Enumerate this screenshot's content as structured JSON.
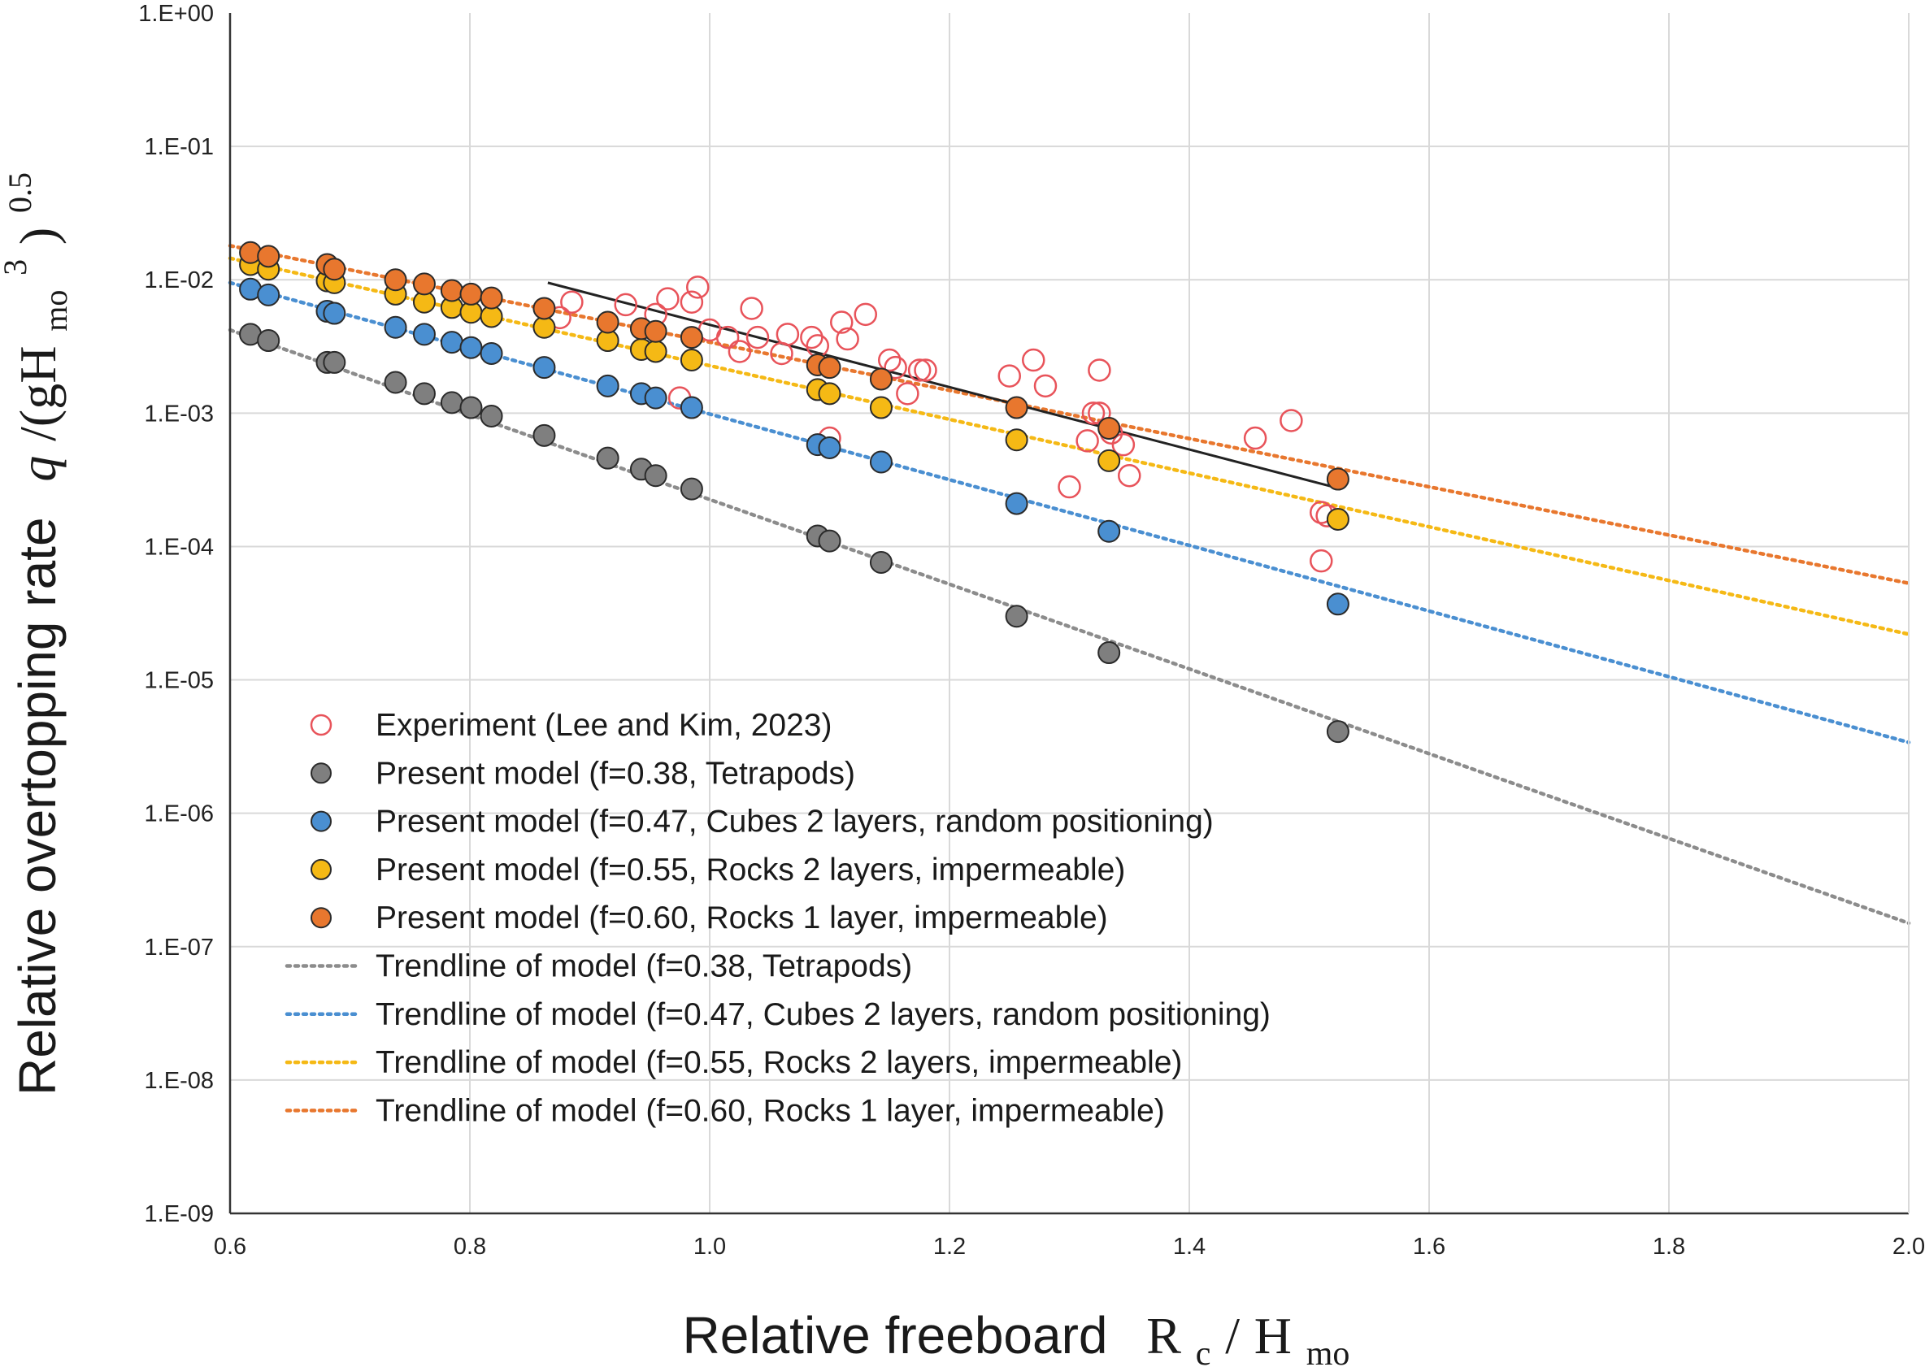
{
  "chart_data": {
    "type": "scatter",
    "title": "",
    "xlabel": "Relative freeboard",
    "xlabel_math": {
      "base": "R",
      "sub": "c",
      "sep": "/",
      "base2": "H",
      "sub2": "mo"
    },
    "ylabel": "Relative overtopping rate",
    "ylabel_math": {
      "q": "q",
      "open": "/(gH",
      "sub": "mo",
      "sup": "3",
      "close": ")",
      "sup2": "0.5"
    },
    "xlim": [
      0.6,
      2.0
    ],
    "ylim_log10": [
      -9,
      0
    ],
    "y_scale": "log",
    "grid": true,
    "legend_position": "lower-left",
    "x_ticks": [
      "0.6",
      "0.8",
      "1.0",
      "1.2",
      "1.4",
      "1.6",
      "1.8",
      "2.0"
    ],
    "x_tick_values": [
      0.6,
      0.8,
      1.0,
      1.2,
      1.4,
      1.6,
      1.8,
      2.0
    ],
    "y_ticks": [
      "1.E+00",
      "1.E-01",
      "1.E-02",
      "1.E-03",
      "1.E-04",
      "1.E-05",
      "1.E-06",
      "1.E-07",
      "1.E-08",
      "1.E-09"
    ],
    "y_tick_values": [
      1,
      0.1,
      0.01,
      0.001,
      0.0001,
      1e-05,
      1e-06,
      1e-07,
      1e-08,
      1e-09
    ],
    "series": [
      {
        "name": "Experiment (Lee and Kim, 2023)",
        "kind": "open-marker",
        "color": "#e8535a",
        "points": [
          [
            0.875,
            0.0052
          ],
          [
            0.885,
            0.0068
          ],
          [
            0.93,
            0.0065
          ],
          [
            0.955,
            0.0055
          ],
          [
            0.965,
            0.0072
          ],
          [
            0.985,
            0.0068
          ],
          [
            0.99,
            0.0088
          ],
          [
            1.0,
            0.0042
          ],
          [
            1.015,
            0.0037
          ],
          [
            1.025,
            0.0029
          ],
          [
            1.035,
            0.0061
          ],
          [
            1.04,
            0.0037
          ],
          [
            1.06,
            0.0028
          ],
          [
            1.065,
            0.0039
          ],
          [
            1.085,
            0.0037
          ],
          [
            1.09,
            0.0032
          ],
          [
            1.1,
            0.00065
          ],
          [
            1.11,
            0.0048
          ],
          [
            1.115,
            0.0036
          ],
          [
            1.13,
            0.0055
          ],
          [
            1.15,
            0.0025
          ],
          [
            1.155,
            0.0022
          ],
          [
            1.165,
            0.0014
          ],
          [
            1.175,
            0.0021
          ],
          [
            1.18,
            0.0021
          ],
          [
            1.25,
            0.0019
          ],
          [
            1.27,
            0.0025
          ],
          [
            1.28,
            0.0016
          ],
          [
            1.3,
            0.00028
          ],
          [
            1.315,
            0.00062
          ],
          [
            1.32,
            0.001
          ],
          [
            1.325,
            0.001
          ],
          [
            1.325,
            0.0021
          ],
          [
            1.335,
            0.00071
          ],
          [
            1.345,
            0.00058
          ],
          [
            1.35,
            0.00034
          ],
          [
            1.455,
            0.00065
          ],
          [
            1.485,
            0.00088
          ],
          [
            1.51,
            0.00018
          ],
          [
            1.515,
            0.00017
          ],
          [
            1.51,
            7.8e-05
          ],
          [
            0.975,
            0.0013
          ]
        ]
      },
      {
        "name": "Present model (f=0.38, Tetrapods)",
        "kind": "filled-marker",
        "color": "#7f7f7f",
        "points": [
          [
            0.617,
            0.0039
          ],
          [
            0.632,
            0.0035
          ],
          [
            0.681,
            0.0024
          ],
          [
            0.687,
            0.0024
          ],
          [
            0.738,
            0.0017
          ],
          [
            0.762,
            0.0014
          ],
          [
            0.785,
            0.0012
          ],
          [
            0.801,
            0.0011
          ],
          [
            0.818,
            0.00095
          ],
          [
            0.862,
            0.00068
          ],
          [
            0.915,
            0.00046
          ],
          [
            0.943,
            0.00038
          ],
          [
            0.955,
            0.00034
          ],
          [
            0.985,
            0.00027
          ],
          [
            1.09,
            0.00012
          ],
          [
            1.1,
            0.00011
          ],
          [
            1.143,
            7.6e-05
          ],
          [
            1.256,
            3e-05
          ],
          [
            1.333,
            1.6e-05
          ],
          [
            1.524,
            4.1e-06
          ]
        ]
      },
      {
        "name": "Present model (f=0.47, Cubes 2 layers, random positioning)",
        "kind": "filled-marker",
        "color": "#4a8fd1",
        "points": [
          [
            0.617,
            0.0085
          ],
          [
            0.632,
            0.0077
          ],
          [
            0.681,
            0.0058
          ],
          [
            0.687,
            0.0056
          ],
          [
            0.738,
            0.0044
          ],
          [
            0.762,
            0.0039
          ],
          [
            0.785,
            0.0034
          ],
          [
            0.801,
            0.0031
          ],
          [
            0.818,
            0.0028
          ],
          [
            0.862,
            0.0022
          ],
          [
            0.915,
            0.0016
          ],
          [
            0.943,
            0.0014
          ],
          [
            0.955,
            0.0013
          ],
          [
            0.985,
            0.0011
          ],
          [
            1.09,
            0.00058
          ],
          [
            1.1,
            0.00055
          ],
          [
            1.143,
            0.00043
          ],
          [
            1.256,
            0.00021
          ],
          [
            1.333,
            0.00013
          ],
          [
            1.524,
            3.7e-05
          ]
        ]
      },
      {
        "name": "Present model (f=0.55, Rocks 2 layers, impermeable)",
        "kind": "filled-marker",
        "color": "#f5b915",
        "points": [
          [
            0.617,
            0.013
          ],
          [
            0.632,
            0.012
          ],
          [
            0.681,
            0.0098
          ],
          [
            0.687,
            0.0095
          ],
          [
            0.738,
            0.0078
          ],
          [
            0.762,
            0.0068
          ],
          [
            0.785,
            0.0062
          ],
          [
            0.801,
            0.0057
          ],
          [
            0.818,
            0.0053
          ],
          [
            0.862,
            0.0044
          ],
          [
            0.915,
            0.0035
          ],
          [
            0.943,
            0.003
          ],
          [
            0.955,
            0.0029
          ],
          [
            0.985,
            0.0025
          ],
          [
            1.09,
            0.0015
          ],
          [
            1.1,
            0.0014
          ],
          [
            1.143,
            0.0011
          ],
          [
            1.256,
            0.00063
          ],
          [
            1.333,
            0.00044
          ],
          [
            1.524,
            0.00016
          ]
        ]
      },
      {
        "name": "Present model (f=0.60, Rocks 1 layer, impermeable)",
        "kind": "filled-marker",
        "color": "#e8772e",
        "points": [
          [
            0.617,
            0.016
          ],
          [
            0.632,
            0.015
          ],
          [
            0.681,
            0.013
          ],
          [
            0.687,
            0.012
          ],
          [
            0.738,
            0.01
          ],
          [
            0.762,
            0.0093
          ],
          [
            0.785,
            0.0083
          ],
          [
            0.801,
            0.0078
          ],
          [
            0.818,
            0.0073
          ],
          [
            0.862,
            0.0061
          ],
          [
            0.915,
            0.0048
          ],
          [
            0.943,
            0.0043
          ],
          [
            0.955,
            0.0041
          ],
          [
            0.985,
            0.0037
          ],
          [
            1.09,
            0.0023
          ],
          [
            1.1,
            0.0022
          ],
          [
            1.143,
            0.0018
          ],
          [
            1.256,
            0.0011
          ],
          [
            1.333,
            0.00077
          ],
          [
            1.524,
            0.00032
          ]
        ]
      }
    ],
    "trendlines": [
      {
        "name": "Trendline of model (f=0.38, Tetrapods)",
        "color": "#8c8c8c",
        "from": [
          0.6,
          0.0042
        ],
        "to": [
          2.0,
          1.5e-07
        ]
      },
      {
        "name": "Trendline of model (f=0.47, Cubes 2 layers, random positioning)",
        "color": "#4a8fd1",
        "from": [
          0.6,
          0.0095
        ],
        "to": [
          2.0,
          3.4e-06
        ]
      },
      {
        "name": "Trendline of model (f=0.55, Rocks 2 layers, impermeable)",
        "color": "#f5b915",
        "from": [
          0.6,
          0.0145
        ],
        "to": [
          2.0,
          2.2e-05
        ]
      },
      {
        "name": "Trendline of model (f=0.60, Rocks 1 layer, impermeable)",
        "color": "#e8772e",
        "from": [
          0.6,
          0.018
        ],
        "to": [
          2.0,
          5.3e-05
        ]
      }
    ],
    "experiment_fit": {
      "color": "#222222",
      "from": [
        0.865,
        0.0095
      ],
      "to": [
        1.52,
        0.00028
      ]
    },
    "legend": [
      {
        "label": "Experiment (Lee and Kim, 2023)",
        "kind": "open-marker",
        "color": "#e8535a"
      },
      {
        "label": "Present model (f=0.38, Tetrapods)",
        "kind": "filled-marker",
        "color": "#7f7f7f"
      },
      {
        "label": "Present model (f=0.47, Cubes 2 layers, random positioning)",
        "kind": "filled-marker",
        "color": "#4a8fd1"
      },
      {
        "label": "Present model (f=0.55, Rocks 2 layers, impermeable)",
        "kind": "filled-marker",
        "color": "#f5b915"
      },
      {
        "label": "Present model (f=0.60, Rocks 1 layer, impermeable)",
        "kind": "filled-marker",
        "color": "#e8772e"
      },
      {
        "label": "Trendline of model (f=0.38, Tetrapods)",
        "kind": "dotted-line",
        "color": "#8c8c8c"
      },
      {
        "label": "Trendline of model (f=0.47, Cubes 2 layers, random positioning)",
        "kind": "dotted-line",
        "color": "#4a8fd1"
      },
      {
        "label": "Trendline of model (f=0.55, Rocks 2 layers, impermeable)",
        "kind": "dotted-line",
        "color": "#f5b915"
      },
      {
        "label": "Trendline of model (f=0.60, Rocks 1 layer, impermeable)",
        "kind": "dotted-line",
        "color": "#e8772e"
      }
    ]
  }
}
